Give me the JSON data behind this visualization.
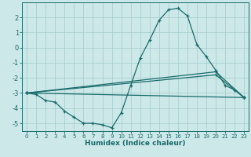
{
  "xlabel": "Humidex (Indice chaleur)",
  "bg_color": "#cce8e8",
  "grid_color": "#aacfcf",
  "line_color": "#1a6b6b",
  "xlim": [
    -0.5,
    23.5
  ],
  "ylim": [
    -5.5,
    3.0
  ],
  "xticks": [
    0,
    1,
    2,
    3,
    4,
    5,
    6,
    7,
    8,
    9,
    10,
    11,
    12,
    13,
    14,
    15,
    16,
    17,
    18,
    19,
    20,
    21,
    22,
    23
  ],
  "yticks": [
    -5,
    -4,
    -3,
    -2,
    -1,
    0,
    1,
    2
  ],
  "lines": [
    {
      "x": [
        0,
        1,
        2,
        3,
        4,
        5,
        6,
        7,
        8,
        9,
        10,
        11,
        12,
        13,
        14,
        15,
        16,
        17,
        18,
        19,
        20,
        21,
        22,
        23
      ],
      "y": [
        -3.0,
        -3.1,
        -3.5,
        -3.6,
        -4.2,
        -4.6,
        -5.0,
        -5.0,
        -5.1,
        -5.3,
        -4.3,
        -2.5,
        -0.7,
        0.5,
        1.8,
        2.5,
        2.6,
        2.1,
        0.2,
        -0.6,
        -1.5,
        -2.5,
        -2.8,
        -3.3
      ]
    },
    {
      "x": [
        0,
        23
      ],
      "y": [
        -3.0,
        -3.3
      ]
    },
    {
      "x": [
        0,
        20,
        23
      ],
      "y": [
        -3.0,
        -1.6,
        -3.3
      ]
    },
    {
      "x": [
        0,
        20,
        23
      ],
      "y": [
        -3.0,
        -1.8,
        -3.3
      ]
    }
  ]
}
